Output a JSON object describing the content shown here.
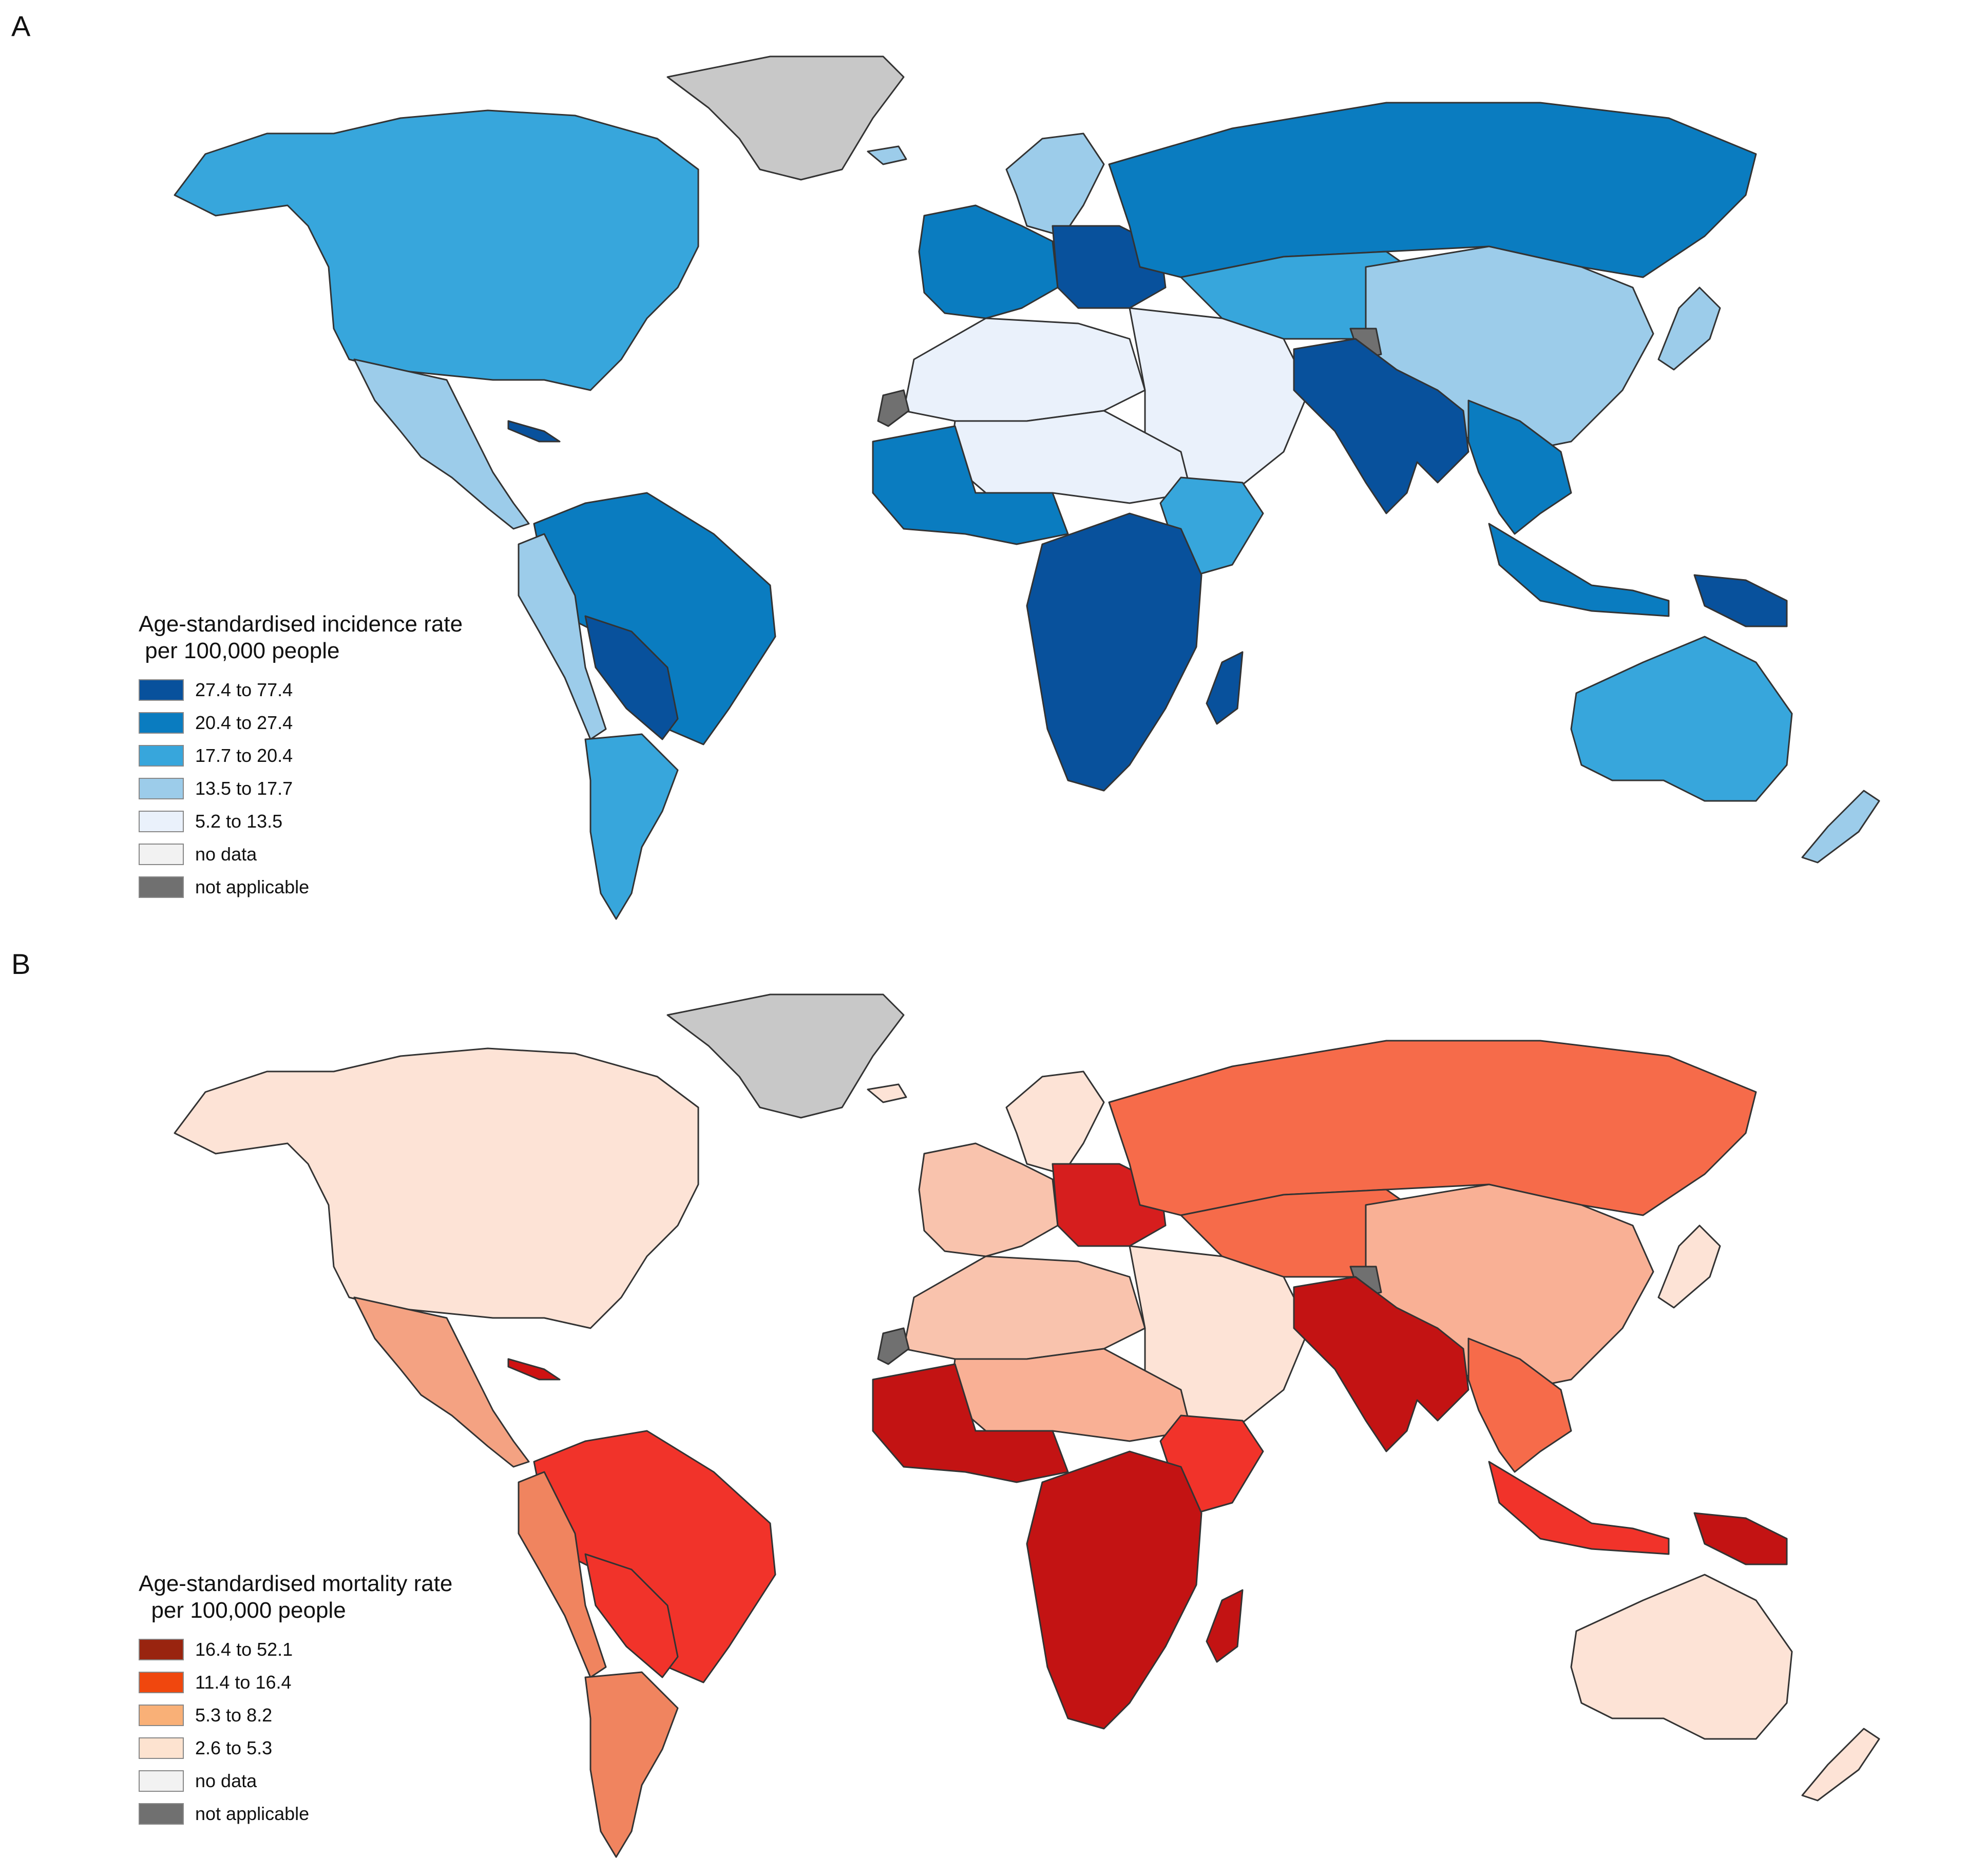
{
  "panels": [
    {
      "letter": "A",
      "legend": {
        "title_line1": "Age-standardised incidence rate",
        "title_line2": " per 100,000 people",
        "items": [
          {
            "label": "27.4 to 77.4",
            "color": "#08519c"
          },
          {
            "label": "20.4 to 27.4",
            "color": "#0a7cc0"
          },
          {
            "label": "17.7 to 20.4",
            "color": "#37a6dc"
          },
          {
            "label": "13.5 to 17.7",
            "color": "#9cccea"
          },
          {
            "label": "5.2 to 13.5",
            "color": "#eaf1fb"
          },
          {
            "label": "no data",
            "color": "#f2f2f2"
          },
          {
            "label": "not applicable",
            "color": "#707070"
          }
        ]
      },
      "region_colors": {
        "north_america": "#37a6dc",
        "greenland": "#c8c8c8",
        "mexico_central": "#9cccea",
        "cuba": "#08519c",
        "south_america_north": "#0a7cc0",
        "south_america_west": "#9cccea",
        "bolivia_paraguay": "#08519c",
        "southern_cone": "#37a6dc",
        "europe_west": "#0a7cc0",
        "europe_east": "#08519c",
        "scandinavia": "#9cccea",
        "russia": "#0a7cc0",
        "central_asia": "#37a6dc",
        "north_africa": "#eaf1fb",
        "middle_east": "#eaf1fb",
        "west_africa": "#0a7cc0",
        "sahel": "#eaf1fb",
        "east_africa": "#37a6dc",
        "central_southern_africa": "#08519c",
        "madagascar": "#08519c",
        "south_asia": "#08519c",
        "china": "#9cccea",
        "southeast_asia": "#0a7cc0",
        "indonesia": "#0a7cc0",
        "png": "#08519c",
        "australia": "#37a6dc",
        "new_zealand": "#9cccea",
        "western_sahara": "#707070",
        "kashmir": "#707070",
        "iceland": "#9cccea",
        "japan": "#9cccea"
      }
    },
    {
      "letter": "B",
      "legend": {
        "title_line1": "Age-standardised mortality rate",
        "title_line2": "  per 100,000 people",
        "items": [
          {
            "label": "16.4 to 52.1",
            "color": "#99240f"
          },
          {
            "label": "11.4 to 16.4",
            "color": "#f0470e"
          },
          {
            "label": "5.3 to 8.2",
            "color": "#f9b077"
          },
          {
            "label": "2.6 to 5.3",
            "color": "#fde3d0"
          },
          {
            "label": "no data",
            "color": "#f2f2f2"
          },
          {
            "label": "not applicable",
            "color": "#707070"
          }
        ]
      },
      "region_colors": {
        "north_america": "#fde3d6",
        "greenland": "#c8c8c8",
        "mexico_central": "#f4a282",
        "cuba": "#cf1212",
        "south_america_north": "#f1332a",
        "south_america_west": "#f0845f",
        "bolivia_paraguay": "#f1332a",
        "southern_cone": "#f0845f",
        "europe_west": "#f9c3ad",
        "europe_east": "#d61e1e",
        "scandinavia": "#fde3d6",
        "russia": "#f66b4a",
        "central_asia": "#f66b4a",
        "north_africa": "#f9c3ad",
        "middle_east": "#fde3d6",
        "west_africa": "#c31313",
        "sahel": "#f9b095",
        "east_africa": "#f1332a",
        "central_southern_africa": "#c31313",
        "madagascar": "#c31313",
        "south_asia": "#c31313",
        "china": "#f9b095",
        "southeast_asia": "#f66b4a",
        "indonesia": "#f1332a",
        "png": "#c31313",
        "australia": "#fde3d6",
        "new_zealand": "#fde3d6",
        "western_sahara": "#707070",
        "kashmir": "#707070",
        "iceland": "#fde3d6",
        "japan": "#fde3d6"
      }
    }
  ]
}
